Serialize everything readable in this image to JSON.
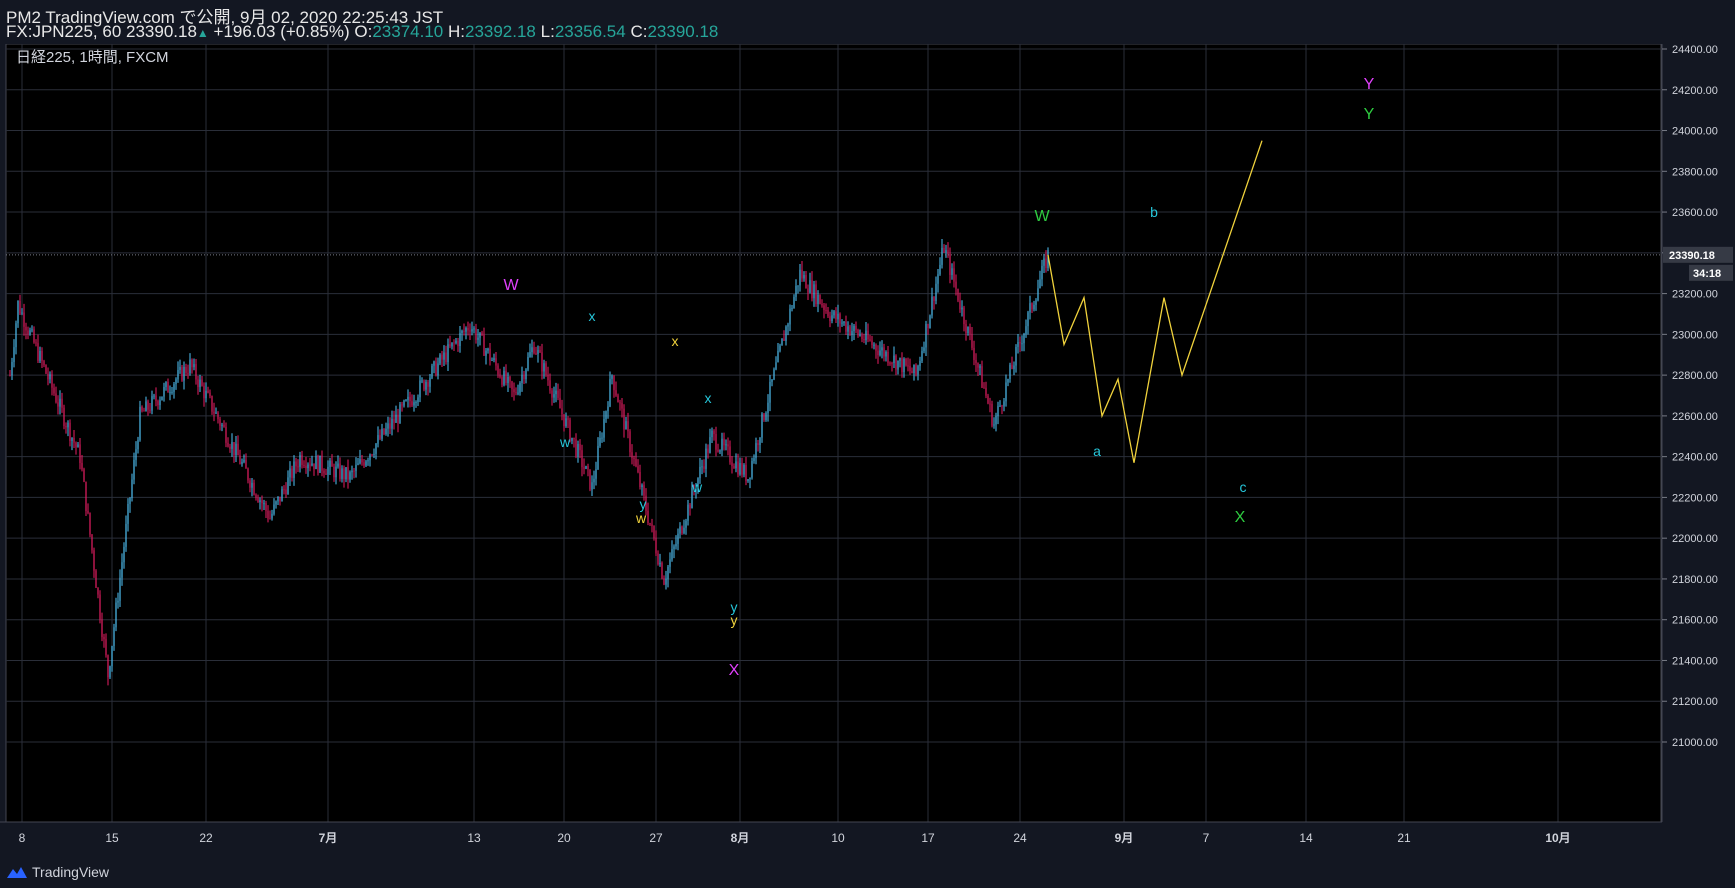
{
  "header": {
    "published": "PM2 TradingView.com で公開, 9月 02, 2020 22:25:43 JST",
    "symbol_line": "FX:JPN225, 60 23390.18",
    "change": "+196.03 (+0.85%)",
    "open_label": "O:",
    "open": "23374.10",
    "high_label": "H:",
    "high": "23392.18",
    "low_label": "L:",
    "low": "23356.54",
    "close_label": "C:",
    "close": "23390.18"
  },
  "legend": "日経225, 1時間, FXCM",
  "colors": {
    "background": "#000000",
    "up_candle": "#4fc3f7",
    "down_candle": "#e91e63",
    "projection": "#f0d23c",
    "grid": "#2a2e39",
    "price_tag": "#363a45"
  },
  "price_axis": {
    "ticks": [
      "24400.00",
      "24200.00",
      "24000.00",
      "23800.00",
      "23600.00",
      "23400.00",
      "23200.00",
      "23000.00",
      "22800.00",
      "22600.00",
      "22400.00",
      "22200.00",
      "22000.00",
      "21800.00",
      "21600.00",
      "21400.00",
      "21200.00",
      "21000.00"
    ],
    "tick_values": [
      24400,
      24200,
      24000,
      23800,
      23600,
      23400,
      23200,
      23000,
      22800,
      22600,
      22400,
      22200,
      22000,
      21800,
      21600,
      21400,
      21200,
      21000
    ],
    "current_price": "23390.18",
    "countdown": "34:18"
  },
  "time_axis": {
    "labels": [
      "8",
      "15",
      "22",
      "7月",
      "13",
      "20",
      "27",
      "8月",
      "10",
      "17",
      "24",
      "9月",
      "7",
      "14",
      "21",
      "10月"
    ],
    "bold": [
      false,
      false,
      false,
      true,
      false,
      false,
      false,
      true,
      false,
      false,
      false,
      true,
      false,
      false,
      false,
      true
    ]
  },
  "chart_data": {
    "type": "candlestick",
    "symbol": "FX:JPN225",
    "interval": "60",
    "ylim": [
      21000,
      24400
    ],
    "key_points": [
      {
        "label": "8",
        "price": 22800
      },
      {
        "label": "",
        "price": 23150
      },
      {
        "label": "",
        "price": 22400
      },
      {
        "label": "15",
        "price": 21330
      },
      {
        "label": "",
        "price": 22600
      },
      {
        "label": "22",
        "price": 22850
      },
      {
        "label": "",
        "price": 22100
      },
      {
        "label": "7月",
        "price": 22400
      },
      {
        "label": "13",
        "price": 22300
      },
      {
        "label": "",
        "price": 23050
      },
      {
        "label": "20",
        "price": 22700
      },
      {
        "label": "",
        "price": 22950
      },
      {
        "label": "27",
        "price": 22250
      },
      {
        "label": "",
        "price": 22800
      },
      {
        "label": "8月",
        "price": 21800
      },
      {
        "label": "",
        "price": 22500
      },
      {
        "label": "10",
        "price": 22300
      },
      {
        "label": "",
        "price": 23300
      },
      {
        "label": "17",
        "price": 23100
      },
      {
        "label": "24",
        "price": 22800
      },
      {
        "label": "",
        "price": 23430
      },
      {
        "label": "",
        "price": 22560
      },
      {
        "label": "9月",
        "price": 23390
      }
    ],
    "projection": [
      23390,
      22950,
      23180,
      22600,
      22780,
      22370,
      23180,
      22800,
      23950
    ],
    "wave_labels": [
      {
        "text": "W",
        "color": "#e040fb",
        "size": 16
      },
      {
        "text": "x",
        "color": "#26c6da",
        "size": 14
      },
      {
        "text": "w",
        "color": "#26c6da",
        "size": 14
      },
      {
        "text": "x",
        "color": "#f0d23c",
        "size": 14
      },
      {
        "text": "x",
        "color": "#26c6da",
        "size": 14
      },
      {
        "text": "y",
        "color": "#26c6da",
        "size": 14
      },
      {
        "text": "w",
        "color": "#f0d23c",
        "size": 14
      },
      {
        "text": "w",
        "color": "#26c6da",
        "size": 14
      },
      {
        "text": "y",
        "color": "#26c6da",
        "size": 14
      },
      {
        "text": "y",
        "color": "#f0d23c",
        "size": 14
      },
      {
        "text": "X",
        "color": "#e040fb",
        "size": 16
      },
      {
        "text": "W",
        "color": "#2ecc40",
        "size": 16
      },
      {
        "text": "a",
        "color": "#26c6da",
        "size": 14
      },
      {
        "text": "b",
        "color": "#26c6da",
        "size": 14
      },
      {
        "text": "c",
        "color": "#26c6da",
        "size": 14
      },
      {
        "text": "X",
        "color": "#2ecc40",
        "size": 16
      },
      {
        "text": "Y",
        "color": "#e040fb",
        "size": 16
      },
      {
        "text": "Y",
        "color": "#2ecc40",
        "size": 16
      }
    ]
  },
  "footer": {
    "brand": "TradingView",
    "logo_icon": "tradingview-logo-icon"
  }
}
